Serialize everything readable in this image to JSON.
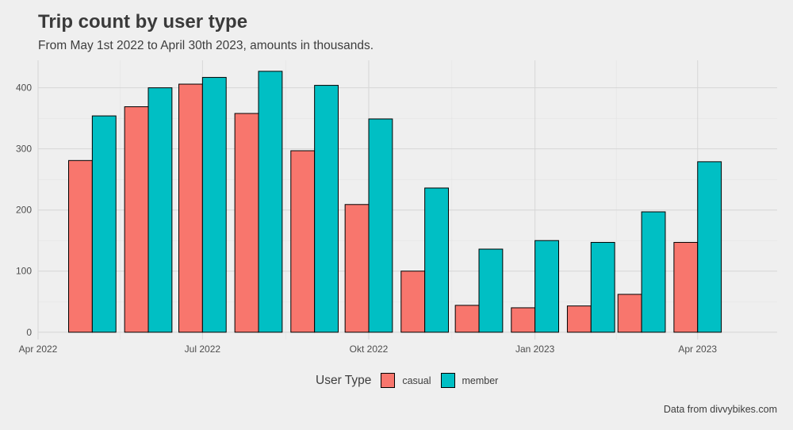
{
  "header": {
    "title": "Trip count by user type",
    "subtitle": "From May 1st 2022 to April 30th 2023, amounts in thousands."
  },
  "caption": "Data from divvybikes.com",
  "legend": {
    "title": "User Type",
    "position": "bottom"
  },
  "colors": {
    "casual": "#F8766D",
    "member": "#00BFC4",
    "background": "#efefef",
    "grid": "#d6d6d6",
    "bar_outline": "#000000"
  },
  "chart_data": {
    "type": "bar",
    "title": "Trip count by user type",
    "subtitle": "From May 1st 2022 to April 30th 2023, amounts in thousands.",
    "xlabel": "",
    "ylabel": "",
    "x_axis": {
      "type": "date",
      "range": [
        "2022-04-01",
        "2023-05-15"
      ],
      "ticks": [
        {
          "date": "2022-04-01",
          "label": "Apr 2022"
        },
        {
          "date": "2022-07-01",
          "label": "Jul 2022"
        },
        {
          "date": "2022-10-01",
          "label": "Okt 2022"
        },
        {
          "date": "2023-01-01",
          "label": "Jan 2023"
        },
        {
          "date": "2023-04-01",
          "label": "Apr 2023"
        }
      ]
    },
    "ylim": [
      -12,
      445
    ],
    "y_ticks": [
      0,
      100,
      200,
      300,
      400
    ],
    "grid": true,
    "x": [
      "2022-05-01",
      "2022-06-01",
      "2022-07-01",
      "2022-08-01",
      "2022-09-01",
      "2022-10-01",
      "2022-11-01",
      "2022-12-01",
      "2023-01-01",
      "2023-02-01",
      "2023-03-01",
      "2023-04-01"
    ],
    "series": [
      {
        "name": "casual",
        "color": "#F8766D",
        "values": [
          281,
          369,
          406,
          358,
          297,
          209,
          100,
          44,
          40,
          43,
          62,
          147
        ]
      },
      {
        "name": "member",
        "color": "#00BFC4",
        "values": [
          354,
          400,
          417,
          427,
          404,
          349,
          236,
          136,
          150,
          147,
          197,
          279
        ]
      }
    ]
  }
}
